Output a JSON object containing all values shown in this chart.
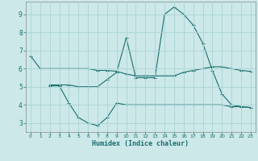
{
  "xlabel": "Humidex (Indice chaleur)",
  "bg_color": "#cce8e8",
  "grid_color": "#aad4d4",
  "line_color": "#1a6e6e",
  "xlim": [
    -0.5,
    23.5
  ],
  "ylim": [
    2.5,
    9.7
  ],
  "xticks": [
    0,
    1,
    2,
    3,
    4,
    5,
    6,
    7,
    8,
    9,
    10,
    11,
    12,
    13,
    14,
    15,
    16,
    17,
    18,
    19,
    20,
    21,
    22,
    23
  ],
  "yticks": [
    3,
    4,
    5,
    6,
    7,
    8,
    9
  ],
  "line1_x": [
    0,
    1,
    2,
    3,
    4,
    5,
    6,
    7,
    8,
    9,
    10,
    11,
    12,
    13,
    14,
    15,
    16,
    17,
    18,
    19,
    20,
    21,
    22,
    23
  ],
  "line1_y": [
    6.7,
    6.0,
    6.0,
    6.0,
    6.0,
    6.0,
    6.0,
    5.9,
    5.9,
    5.85,
    5.7,
    5.6,
    5.6,
    5.6,
    5.6,
    5.6,
    5.8,
    5.9,
    6.0,
    6.1,
    6.1,
    6.0,
    5.9,
    5.85
  ],
  "line2_x": [
    2,
    3,
    4,
    5,
    6,
    7,
    8,
    9,
    10,
    11,
    12,
    13,
    14,
    15,
    16,
    17,
    18,
    19,
    20,
    21,
    22,
    23
  ],
  "line2_y": [
    5.05,
    5.05,
    4.1,
    3.3,
    3.0,
    2.85,
    3.3,
    4.1,
    4.0,
    4.0,
    4.0,
    4.0,
    4.0,
    4.0,
    4.0,
    4.0,
    4.0,
    4.0,
    4.0,
    3.9,
    3.9,
    3.85
  ],
  "line3_x": [
    2,
    3,
    4,
    5,
    6,
    7,
    8,
    9,
    10,
    11,
    12,
    13,
    14,
    15,
    16,
    17,
    18,
    19,
    20,
    21,
    22,
    23
  ],
  "line3_y": [
    5.1,
    5.1,
    5.1,
    5.0,
    5.0,
    5.0,
    5.4,
    5.8,
    7.7,
    5.5,
    5.5,
    5.5,
    9.0,
    9.4,
    9.0,
    8.4,
    7.4,
    5.9,
    4.6,
    4.0,
    3.9,
    3.85
  ]
}
